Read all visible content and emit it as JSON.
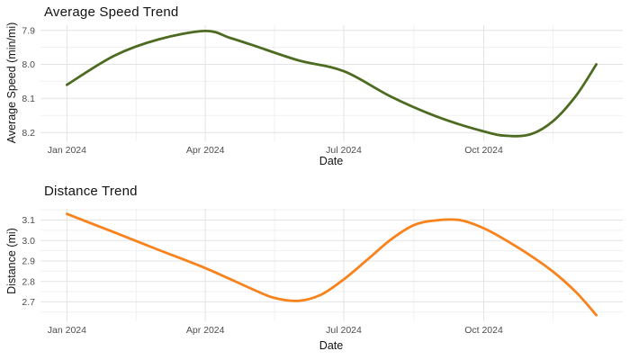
{
  "colors": {
    "speed_line": "#4D6B21",
    "distance_line": "#F8821C",
    "grid_major": "#e3e3e3",
    "grid_minor": "#f1f1f1",
    "tick_label": "#4d4d4d",
    "title_text": "#131313"
  },
  "chart_data": [
    {
      "type": "line",
      "title": "Average Speed Trend",
      "xlabel": "Date",
      "ylabel": "Average Speed (min/mi)",
      "legend": "none",
      "grid": true,
      "x_ticks": [
        {
          "day": 0,
          "label": "Jan 2024"
        },
        {
          "day": 91,
          "label": "Apr 2024"
        },
        {
          "day": 182,
          "label": "Jul 2024"
        },
        {
          "day": 274,
          "label": "Oct 2024"
        }
      ],
      "x_minor_days": [
        45.5,
        136.5,
        228,
        319.5
      ],
      "xlim_days": [
        -17.4,
        365.4
      ],
      "y_ticks": [
        7.9,
        8.0,
        8.1,
        8.2
      ],
      "y_minor": [
        7.95,
        8.05,
        8.15
      ],
      "y_tick_decimals": 1,
      "ylim": [
        7.885,
        8.226
      ],
      "y_reversed": true,
      "series": [
        {
          "name": "average-speed",
          "color_key": "speed_line",
          "points_day_value": [
            [
              0,
              8.06
            ],
            [
              31,
              7.975
            ],
            [
              60,
              7.927
            ],
            [
              91,
              7.902
            ],
            [
              107,
              7.922
            ],
            [
              121,
              7.942
            ],
            [
              152,
              7.988
            ],
            [
              182,
              8.02
            ],
            [
              213,
              8.095
            ],
            [
              244,
              8.155
            ],
            [
              274,
              8.197
            ],
            [
              289,
              8.21
            ],
            [
              305,
              8.205
            ],
            [
              320,
              8.165
            ],
            [
              335,
              8.09
            ],
            [
              348,
              8.0
            ]
          ]
        }
      ]
    },
    {
      "type": "line",
      "title": "Distance Trend",
      "xlabel": "Date",
      "ylabel": "Distance (mi)",
      "legend": "none",
      "grid": true,
      "x_ticks": [
        {
          "day": 0,
          "label": "Jan 2024"
        },
        {
          "day": 91,
          "label": "Apr 2024"
        },
        {
          "day": 182,
          "label": "Jul 2024"
        },
        {
          "day": 274,
          "label": "Oct 2024"
        }
      ],
      "x_minor_days": [
        45.5,
        136.5,
        228,
        319.5
      ],
      "xlim_days": [
        -17.4,
        365.4
      ],
      "y_ticks": [
        3.1,
        3.0,
        2.9,
        2.8,
        2.7
      ],
      "y_minor": [
        3.15,
        3.05,
        2.95,
        2.85,
        2.75,
        2.65
      ],
      "y_tick_decimals": 1,
      "ylim": [
        2.605,
        3.155
      ],
      "y_reversed": false,
      "series": [
        {
          "name": "distance",
          "color_key": "distance_line",
          "points_day_value": [
            [
              0,
              3.13
            ],
            [
              31,
              3.04
            ],
            [
              60,
              2.955
            ],
            [
              91,
              2.865
            ],
            [
              121,
              2.765
            ],
            [
              136,
              2.72
            ],
            [
              152,
              2.705
            ],
            [
              167,
              2.735
            ],
            [
              182,
              2.81
            ],
            [
              198,
              2.91
            ],
            [
              213,
              3.005
            ],
            [
              228,
              3.075
            ],
            [
              242,
              3.098
            ],
            [
              258,
              3.1
            ],
            [
              274,
              3.06
            ],
            [
              290,
              2.995
            ],
            [
              305,
              2.925
            ],
            [
              320,
              2.845
            ],
            [
              335,
              2.745
            ],
            [
              348,
              2.635
            ]
          ]
        }
      ]
    }
  ]
}
